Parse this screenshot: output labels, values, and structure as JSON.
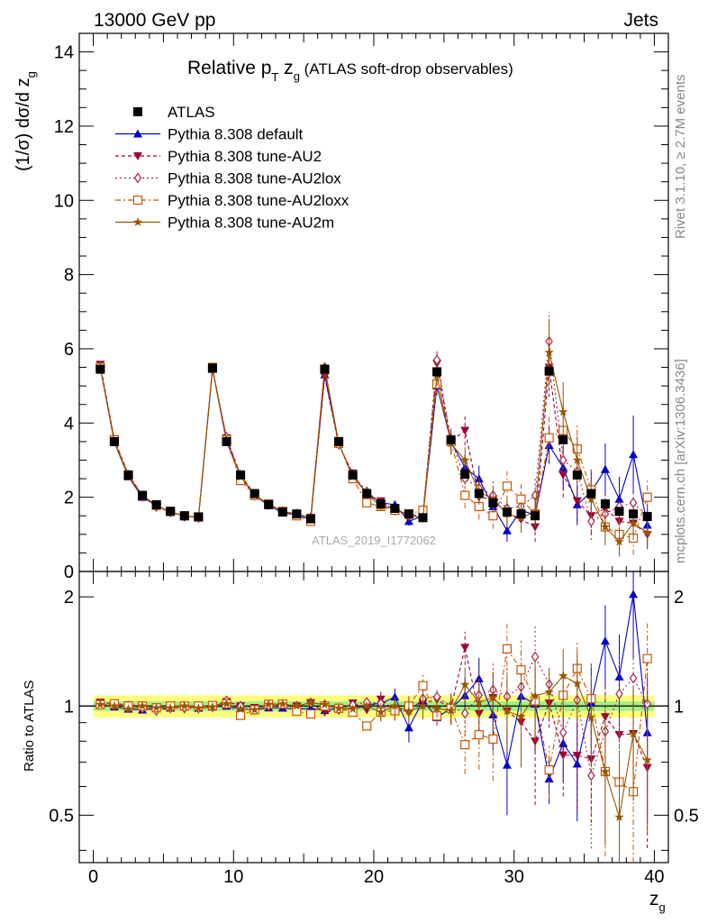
{
  "header": {
    "left": "13000 GeV pp",
    "right": "Jets"
  },
  "side_labels": {
    "rivet": "Rivet 3.1.10, ≥ 2.7M events",
    "mcplots": "mcplots.cern.ch [arXiv:1306.3436]"
  },
  "chart_data": {
    "type": "scatter",
    "title_main": "Relative p",
    "title_sub1": "T",
    "title_mid": " z",
    "title_sub2": "g",
    "title_tail": " (ATLAS soft-drop observables)",
    "ylabel": "(1/σ) dσ/d z",
    "ylabel_sub": "g",
    "xlabel": "z",
    "xlabel_sub": "g",
    "ratio_ylabel": "Ratio to ATLAS",
    "watermark": "ATLAS_2019_I1772062",
    "xlim": [
      -1,
      41
    ],
    "ylim": [
      0,
      14.5
    ],
    "ratio_ylim": [
      0.37,
      2.35
    ],
    "ratio_log": true,
    "x_ticks": [
      "0",
      "10",
      "20",
      "30",
      "40"
    ],
    "y_ticks": [
      "0",
      "2",
      "4",
      "6",
      "8",
      "10",
      "12",
      "14"
    ],
    "ratio_ticks": [
      "0.5",
      "1",
      "2"
    ],
    "x": [
      0.5,
      1.5,
      2.5,
      3.5,
      4.5,
      5.5,
      6.5,
      7.5,
      8.5,
      9.5,
      10.5,
      11.5,
      12.5,
      13.5,
      14.5,
      15.5,
      16.5,
      17.5,
      18.5,
      19.5,
      20.5,
      21.5,
      22.5,
      23.5,
      24.5,
      25.5,
      26.5,
      27.5,
      28.5,
      29.5,
      30.5,
      31.5,
      32.5,
      33.5,
      34.5,
      35.5,
      36.5,
      37.5,
      38.5,
      39.5
    ],
    "data": {
      "name": "ATLAS",
      "values": [
        5.45,
        3.5,
        2.6,
        2.05,
        1.8,
        1.62,
        1.5,
        1.47,
        5.48,
        3.5,
        2.6,
        2.1,
        1.8,
        1.6,
        1.55,
        1.42,
        5.45,
        3.5,
        2.6,
        2.1,
        1.82,
        1.7,
        1.55,
        1.45,
        5.38,
        3.55,
        2.62,
        2.1,
        1.85,
        1.6,
        1.55,
        1.5,
        5.4,
        3.55,
        2.6,
        2.1,
        1.82,
        1.62,
        1.55,
        1.48
      ],
      "ratio_band_inner": 0.03,
      "ratio_band_outer": 0.07,
      "color": "#000000"
    },
    "series": [
      {
        "name": "Pythia 8.308 default",
        "color": "#0000cc",
        "marker": "triangle-up",
        "dash": "",
        "values": [
          5.5,
          3.48,
          2.55,
          2.0,
          1.78,
          1.6,
          1.5,
          1.45,
          5.45,
          3.5,
          2.55,
          2.05,
          1.78,
          1.58,
          1.52,
          1.4,
          5.3,
          3.45,
          2.55,
          2.12,
          1.85,
          1.8,
          1.35,
          1.5,
          5.0,
          3.5,
          2.8,
          2.5,
          1.75,
          1.1,
          1.65,
          1.52,
          3.4,
          2.8,
          1.8,
          2.15,
          2.75,
          1.95,
          3.15,
          1.25
        ],
        "errors": [
          0,
          0,
          0,
          0,
          0,
          0,
          0,
          0,
          0,
          0,
          0,
          0,
          0,
          0,
          0,
          0,
          0,
          0,
          0,
          0,
          0.1,
          0.1,
          0.12,
          0.12,
          0.25,
          0.3,
          0.35,
          0.35,
          0.35,
          0.3,
          0.35,
          0.4,
          0.5,
          0.6,
          0.55,
          0.6,
          0.7,
          0.6,
          1.05,
          0.55
        ]
      },
      {
        "name": "Pythia 8.308 tune-AU2",
        "color": "#990033",
        "marker": "triangle-down",
        "dash": "4,3",
        "values": [
          5.58,
          3.55,
          2.62,
          2.05,
          1.75,
          1.6,
          1.5,
          1.45,
          5.45,
          3.6,
          2.6,
          2.08,
          1.8,
          1.6,
          1.55,
          1.45,
          5.25,
          3.4,
          2.65,
          2.05,
          1.9,
          1.65,
          1.55,
          1.48,
          5.6,
          3.5,
          3.8,
          2.0,
          1.95,
          1.55,
          1.4,
          1.2,
          5.5,
          2.6,
          1.9,
          1.5,
          1.7,
          1.35,
          1.3,
          1.0
        ],
        "errors": [
          0,
          0,
          0,
          0,
          0,
          0,
          0,
          0,
          0,
          0,
          0,
          0,
          0,
          0,
          0,
          0,
          0,
          0,
          0,
          0,
          0.1,
          0.1,
          0.12,
          0.12,
          0.3,
          0.35,
          0.4,
          0.35,
          0.35,
          0.35,
          0.35,
          0.4,
          0.8,
          0.6,
          0.55,
          0.5,
          0.5,
          0.45,
          0.45,
          0.4
        ]
      },
      {
        "name": "Pythia 8.308 tune-AU2lox",
        "color": "#aa2244",
        "marker": "diamond-open",
        "dash": "2,3",
        "values": [
          5.52,
          3.52,
          2.6,
          2.02,
          1.75,
          1.6,
          1.48,
          1.45,
          5.45,
          3.62,
          2.6,
          2.05,
          1.8,
          1.62,
          1.55,
          1.45,
          5.5,
          3.45,
          2.62,
          2.15,
          1.85,
          1.65,
          1.5,
          1.52,
          5.7,
          3.55,
          2.5,
          2.25,
          2.05,
          1.7,
          1.75,
          2.05,
          6.2,
          3.0,
          2.7,
          1.35,
          1.55,
          1.75,
          1.85,
          1.5
        ],
        "errors": [
          0,
          0,
          0,
          0,
          0,
          0,
          0,
          0,
          0,
          0,
          0,
          0,
          0,
          0,
          0,
          0,
          0,
          0,
          0,
          0,
          0.1,
          0.1,
          0.12,
          0.12,
          0.3,
          0.35,
          0.4,
          0.35,
          0.4,
          0.35,
          0.4,
          0.45,
          0.8,
          0.6,
          0.55,
          0.5,
          0.5,
          0.5,
          0.5,
          0.45
        ]
      },
      {
        "name": "Pythia 8.308 tune-AU2loxx",
        "color": "#cc5500",
        "marker": "square-open",
        "dash": "6,3,2,3",
        "values": [
          5.5,
          3.55,
          2.6,
          2.05,
          1.78,
          1.62,
          1.5,
          1.47,
          5.5,
          3.55,
          2.45,
          2.05,
          1.82,
          1.62,
          1.5,
          1.35,
          5.45,
          3.45,
          2.5,
          1.85,
          1.75,
          1.65,
          1.55,
          1.65,
          5.05,
          3.5,
          2.05,
          1.75,
          1.5,
          2.3,
          1.95,
          1.55,
          3.6,
          3.8,
          3.3,
          2.2,
          1.2,
          1.0,
          0.9,
          2.0
        ],
        "errors": [
          0,
          0,
          0,
          0,
          0,
          0,
          0,
          0,
          0,
          0,
          0,
          0,
          0,
          0,
          0,
          0,
          0,
          0,
          0,
          0,
          0.1,
          0.1,
          0.12,
          0.12,
          0.3,
          0.35,
          0.35,
          0.35,
          0.35,
          0.4,
          0.4,
          0.35,
          0.6,
          0.7,
          0.65,
          0.55,
          0.5,
          0.45,
          0.45,
          0.5
        ]
      },
      {
        "name": "Pythia 8.308 tune-AU2m",
        "color": "#995500",
        "marker": "star",
        "dash": "",
        "values": [
          5.5,
          3.5,
          2.55,
          2.05,
          1.78,
          1.6,
          1.5,
          1.45,
          5.45,
          3.55,
          2.55,
          2.05,
          1.82,
          1.62,
          1.55,
          1.45,
          5.5,
          3.45,
          2.55,
          2.1,
          1.75,
          1.7,
          1.5,
          1.45,
          5.3,
          3.45,
          3.0,
          2.15,
          1.95,
          1.55,
          1.45,
          1.6,
          5.9,
          4.3,
          3.0,
          1.95,
          1.2,
          0.8,
          1.3,
          1.05
        ],
        "errors": [
          0,
          0,
          0,
          0,
          0,
          0,
          0,
          0,
          0,
          0,
          0,
          0,
          0,
          0,
          0,
          0,
          0,
          0,
          0,
          0,
          0.1,
          0.1,
          0.12,
          0.12,
          0.3,
          0.3,
          0.35,
          0.35,
          0.35,
          0.35,
          0.4,
          0.4,
          0.9,
          0.8,
          0.65,
          0.5,
          0.45,
          0.4,
          0.45,
          0.4
        ]
      }
    ]
  }
}
